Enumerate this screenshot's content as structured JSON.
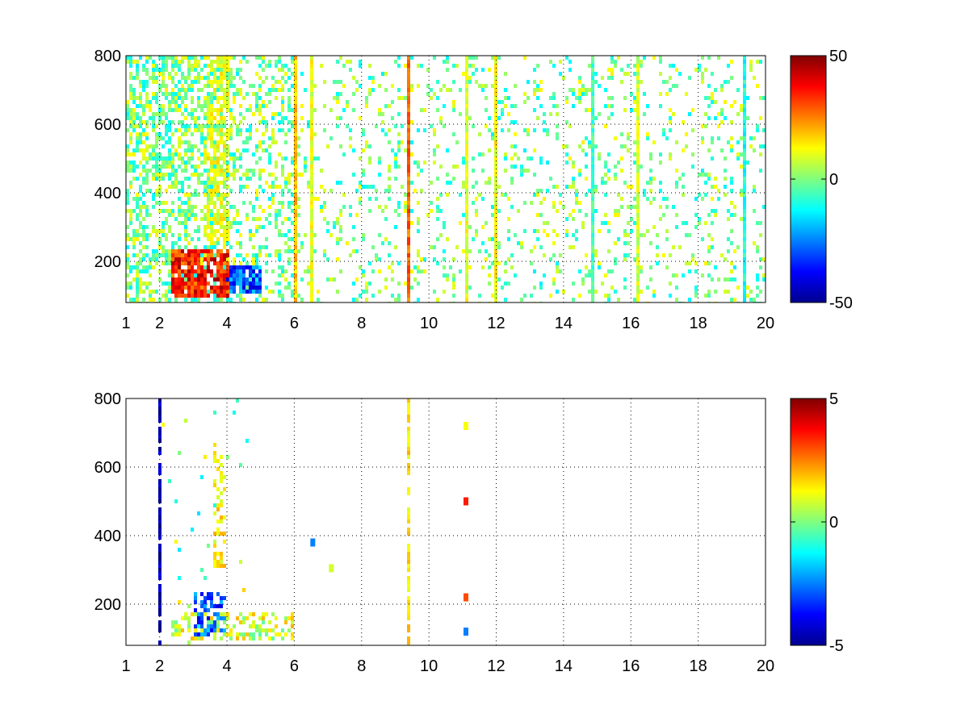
{
  "chart_data": [
    {
      "type": "heatmap",
      "title": "",
      "xlabel": "",
      "ylabel": "",
      "xlim": [
        1,
        20
      ],
      "ylim": [
        80,
        800
      ],
      "x_ticks": [
        1,
        2,
        4,
        6,
        8,
        10,
        12,
        14,
        16,
        18,
        20
      ],
      "y_ticks": [
        200,
        400,
        600,
        800
      ],
      "grid": true,
      "colormap": "jet",
      "color_limits": [
        -50,
        50
      ],
      "colorbar_ticks": [
        -50,
        0,
        50
      ],
      "features": {
        "vertical_stripes_x": [
          6.05,
          6.55,
          9.4,
          11.1,
          12.0,
          14.9,
          16.2,
          19.4
        ],
        "stripe_values": [
          18,
          10,
          28,
          10,
          12,
          -6,
          8,
          -10
        ],
        "hot_spot": {
          "x_range": [
            2.3,
            4.1
          ],
          "y_range": [
            90,
            230
          ],
          "value": 45
        },
        "cold_spot": {
          "x_range": [
            4.0,
            5.0
          ],
          "y_range": [
            110,
            190
          ],
          "value": -40
        },
        "warm_plume": {
          "x_range": [
            3.4,
            4.1
          ],
          "y_range": [
            250,
            800
          ],
          "value": 12
        }
      }
    },
    {
      "type": "heatmap",
      "title": "",
      "xlabel": "",
      "ylabel": "",
      "xlim": [
        1,
        20
      ],
      "ylim": [
        80,
        800
      ],
      "x_ticks": [
        1,
        2,
        4,
        6,
        8,
        10,
        12,
        14,
        16,
        18,
        20
      ],
      "y_ticks": [
        200,
        400,
        600,
        800
      ],
      "grid": true,
      "colormap": "jet",
      "color_limits": [
        -5,
        5
      ],
      "colorbar_ticks": [
        -5,
        0,
        5
      ],
      "features": {
        "vertical_stripes_x": [
          2.0,
          9.4
        ],
        "stripe_values": [
          -4.5,
          1.5
        ],
        "cold_spot": {
          "x_range": [
            3.0,
            4.0
          ],
          "y_range": [
            110,
            230
          ],
          "value": -4
        },
        "warm_plume": {
          "x_range": [
            3.6,
            4.0
          ],
          "y_range": [
            300,
            680
          ],
          "value": 1.5
        },
        "isolated_points": [
          [
            6.55,
            380,
            -2.5
          ],
          [
            11.1,
            720,
            1.2
          ],
          [
            11.1,
            500,
            3.5
          ],
          [
            11.1,
            220,
            3
          ],
          [
            11.1,
            120,
            -2.5
          ],
          [
            7.1,
            305,
            0.8
          ]
        ]
      }
    }
  ]
}
